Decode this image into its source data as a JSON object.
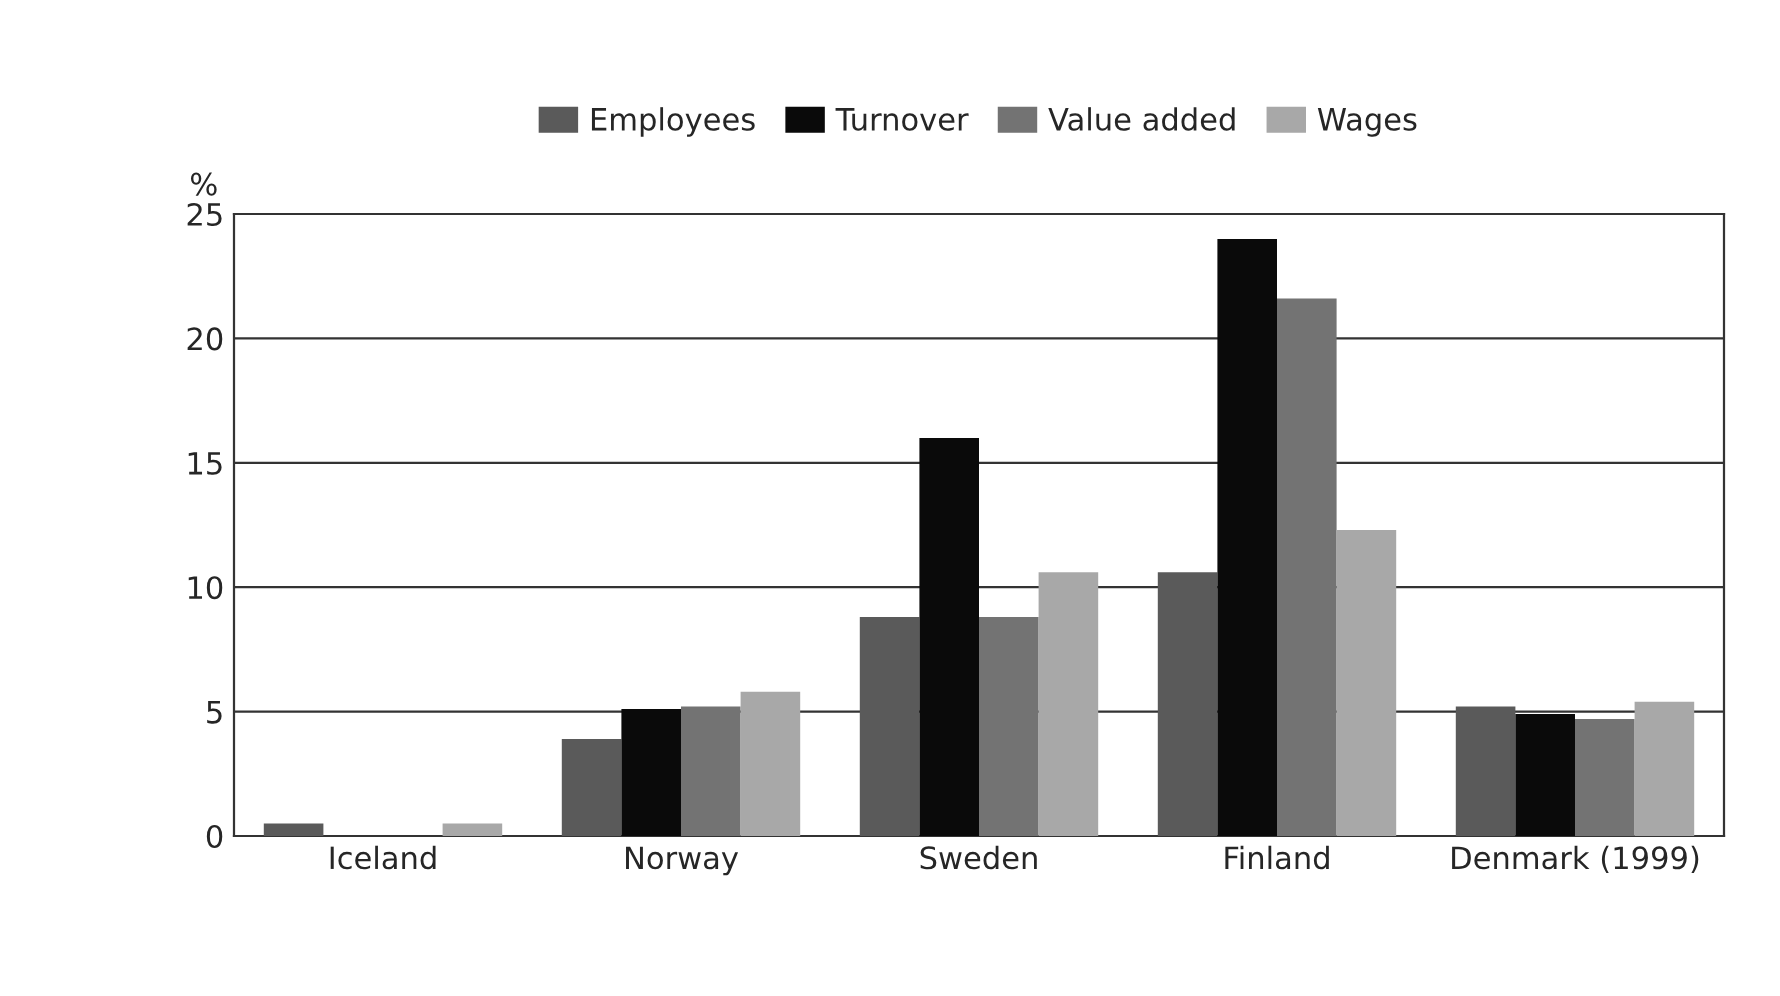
{
  "chart_data": {
    "type": "bar",
    "ylabel": "%",
    "categories": [
      "Iceland",
      "Norway",
      "Sweden",
      "Finland",
      "Denmark (1999)"
    ],
    "series": [
      {
        "name": "Employees",
        "color": "#5a5a5a",
        "values": [
          0.5,
          3.9,
          8.8,
          10.6,
          5.2
        ]
      },
      {
        "name": "Turnover",
        "color": "#0a0a0a",
        "values": [
          null,
          5.1,
          16.0,
          24.0,
          4.9
        ]
      },
      {
        "name": "Value added",
        "color": "#737373",
        "values": [
          null,
          5.2,
          8.8,
          21.6,
          4.7
        ]
      },
      {
        "name": "Wages",
        "color": "#a8a8a8",
        "values": [
          0.5,
          5.8,
          10.6,
          12.3,
          5.4
        ]
      }
    ],
    "ylim": [
      0,
      25
    ],
    "yticks": [
      0,
      5,
      10,
      15,
      20,
      25
    ],
    "grid": "y",
    "legend": "top"
  }
}
